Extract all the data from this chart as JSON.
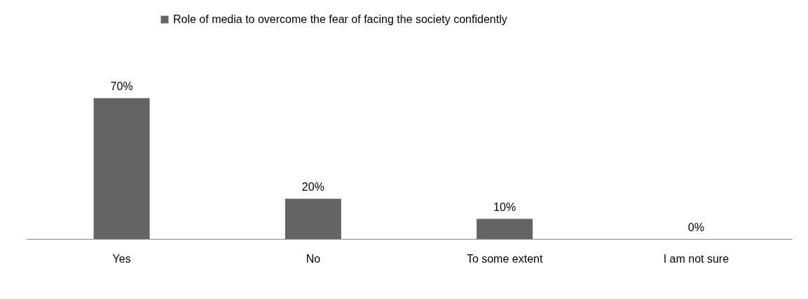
{
  "chart_data": {
    "type": "bar",
    "categories": [
      "Yes",
      "No",
      "To some extent",
      "I am not sure"
    ],
    "series": [
      {
        "name": "Role of media to overcome the fear of facing the society confidently",
        "color": "#646464",
        "values": [
          70,
          20,
          10,
          0
        ],
        "value_labels": [
          "70%",
          "20%",
          "10%",
          "0%"
        ]
      }
    ],
    "legend": "top",
    "grid": false
  }
}
